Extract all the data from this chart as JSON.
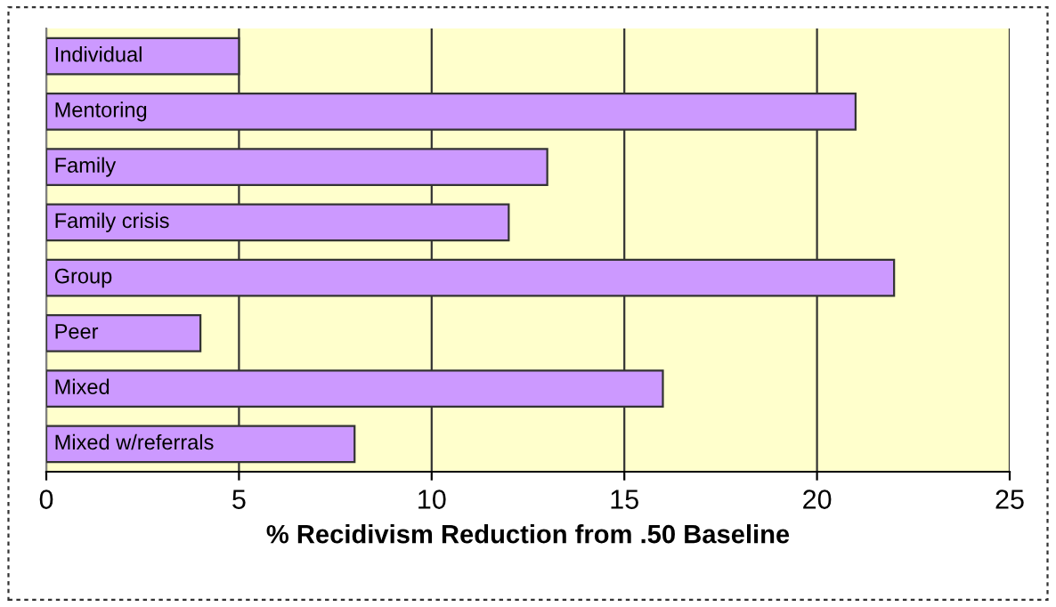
{
  "chart_data": {
    "type": "bar",
    "orientation": "horizontal",
    "xlabel": "% Recidivism Reduction from .50 Baseline",
    "categories": [
      "Individual",
      "Mentoring",
      "Family",
      "Family crisis",
      "Group",
      "Peer",
      "Mixed",
      "Mixed w/referrals"
    ],
    "values": [
      5,
      21,
      13,
      12,
      22,
      4,
      16,
      8
    ],
    "color": "#cc99ff",
    "xlim": [
      0,
      25
    ],
    "xticks": [
      0,
      5,
      10,
      15,
      20,
      25
    ],
    "grid": "x"
  }
}
